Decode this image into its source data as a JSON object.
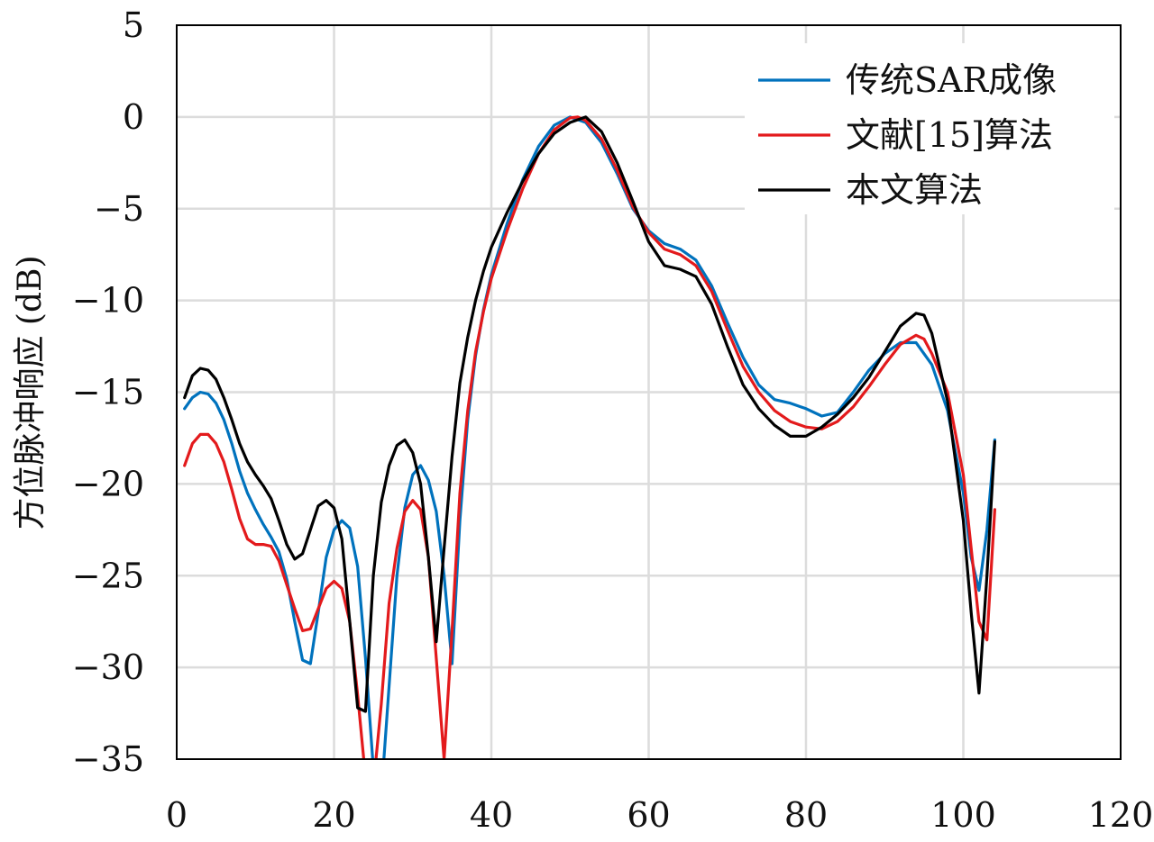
{
  "chart_data": {
    "type": "line",
    "title": "",
    "xlabel": "",
    "ylabel": "方位脉冲响应 (dB)",
    "xlim": [
      0,
      120
    ],
    "ylim": [
      -35,
      5
    ],
    "xticks": [
      0,
      20,
      40,
      60,
      80,
      100,
      120
    ],
    "yticks": [
      5,
      0,
      -5,
      -10,
      -15,
      -20,
      -25,
      -30,
      -35
    ],
    "xtick_labels": [
      "0",
      "20",
      "40",
      "60",
      "80",
      "100",
      "120"
    ],
    "ytick_labels": [
      "5",
      "0",
      "−5",
      "−10",
      "−15",
      "−20",
      "−25",
      "−30",
      "−35"
    ],
    "grid": true,
    "legend_position": "top-right",
    "series": [
      {
        "name": "传统SAR成像",
        "color": "#0072BD",
        "points": [
          [
            1,
            -15.9
          ],
          [
            2,
            -15.3
          ],
          [
            3,
            -15.0
          ],
          [
            4,
            -15.1
          ],
          [
            5,
            -15.6
          ],
          [
            6,
            -16.5
          ],
          [
            7,
            -17.8
          ],
          [
            8,
            -19.3
          ],
          [
            9,
            -20.5
          ],
          [
            10,
            -21.4
          ],
          [
            11,
            -22.2
          ],
          [
            12,
            -22.9
          ],
          [
            13,
            -23.7
          ],
          [
            14,
            -25.2
          ],
          [
            15,
            -27.5
          ],
          [
            16,
            -29.6
          ],
          [
            17,
            -29.8
          ],
          [
            18,
            -27.0
          ],
          [
            19,
            -24.0
          ],
          [
            20,
            -22.5
          ],
          [
            21,
            -22.0
          ],
          [
            22,
            -22.4
          ],
          [
            23,
            -24.5
          ],
          [
            24,
            -29.5
          ],
          [
            25,
            -35.5
          ],
          [
            26,
            -37.0
          ],
          [
            27,
            -31.0
          ],
          [
            28,
            -25.0
          ],
          [
            29,
            -21.3
          ],
          [
            30,
            -19.5
          ],
          [
            31,
            -19.0
          ],
          [
            32,
            -19.8
          ],
          [
            33,
            -21.5
          ],
          [
            34,
            -25.0
          ],
          [
            35,
            -29.8
          ],
          [
            36,
            -22.0
          ],
          [
            37,
            -16.5
          ],
          [
            38,
            -13.0
          ],
          [
            39,
            -10.5
          ],
          [
            40,
            -8.6
          ],
          [
            42,
            -5.8
          ],
          [
            44,
            -3.4
          ],
          [
            46,
            -1.6
          ],
          [
            48,
            -0.45
          ],
          [
            50,
            0.0
          ],
          [
            52,
            -0.3
          ],
          [
            54,
            -1.4
          ],
          [
            56,
            -3.1
          ],
          [
            58,
            -5.0
          ],
          [
            60,
            -6.2
          ],
          [
            62,
            -6.9
          ],
          [
            64,
            -7.2
          ],
          [
            66,
            -7.8
          ],
          [
            68,
            -9.2
          ],
          [
            70,
            -11.2
          ],
          [
            72,
            -13.1
          ],
          [
            74,
            -14.6
          ],
          [
            76,
            -15.4
          ],
          [
            78,
            -15.6
          ],
          [
            80,
            -15.9
          ],
          [
            82,
            -16.3
          ],
          [
            84,
            -16.1
          ],
          [
            86,
            -15.0
          ],
          [
            88,
            -13.8
          ],
          [
            90,
            -12.9
          ],
          [
            92,
            -12.3
          ],
          [
            94,
            -12.3
          ],
          [
            96,
            -13.5
          ],
          [
            98,
            -16.0
          ],
          [
            100,
            -20.5
          ],
          [
            101,
            -24.0
          ],
          [
            102,
            -25.8
          ],
          [
            103,
            -22.5
          ],
          [
            104,
            -17.6
          ]
        ]
      },
      {
        "name": "文献[15]算法",
        "color": "#E31A1C",
        "points": [
          [
            1,
            -19.0
          ],
          [
            2,
            -17.8
          ],
          [
            3,
            -17.3
          ],
          [
            4,
            -17.3
          ],
          [
            5,
            -17.8
          ],
          [
            6,
            -18.8
          ],
          [
            7,
            -20.3
          ],
          [
            8,
            -21.9
          ],
          [
            9,
            -23.0
          ],
          [
            10,
            -23.3
          ],
          [
            11,
            -23.3
          ],
          [
            12,
            -23.4
          ],
          [
            13,
            -24.2
          ],
          [
            14,
            -25.5
          ],
          [
            15,
            -26.8
          ],
          [
            16,
            -28.0
          ],
          [
            17,
            -27.9
          ],
          [
            18,
            -26.8
          ],
          [
            19,
            -25.7
          ],
          [
            20,
            -25.3
          ],
          [
            21,
            -25.7
          ],
          [
            22,
            -27.5
          ],
          [
            23,
            -31.5
          ],
          [
            24,
            -36.0
          ],
          [
            25,
            -36.5
          ],
          [
            26,
            -32.0
          ],
          [
            27,
            -26.5
          ],
          [
            28,
            -23.5
          ],
          [
            29,
            -21.5
          ],
          [
            30,
            -20.9
          ],
          [
            31,
            -21.4
          ],
          [
            32,
            -24.0
          ],
          [
            33,
            -29.5
          ],
          [
            34,
            -35.0
          ],
          [
            35,
            -28.0
          ],
          [
            36,
            -20.5
          ],
          [
            37,
            -16.0
          ],
          [
            38,
            -12.8
          ],
          [
            39,
            -10.6
          ],
          [
            40,
            -8.8
          ],
          [
            42,
            -6.2
          ],
          [
            44,
            -3.9
          ],
          [
            46,
            -2.0
          ],
          [
            48,
            -0.7
          ],
          [
            50,
            -0.05
          ],
          [
            51,
            0.0
          ],
          [
            52,
            -0.2
          ],
          [
            54,
            -1.2
          ],
          [
            56,
            -2.9
          ],
          [
            58,
            -4.9
          ],
          [
            60,
            -6.3
          ],
          [
            62,
            -7.2
          ],
          [
            64,
            -7.5
          ],
          [
            66,
            -8.1
          ],
          [
            68,
            -9.5
          ],
          [
            70,
            -11.6
          ],
          [
            72,
            -13.6
          ],
          [
            74,
            -15.0
          ],
          [
            76,
            -16.0
          ],
          [
            78,
            -16.6
          ],
          [
            80,
            -16.9
          ],
          [
            82,
            -17.0
          ],
          [
            84,
            -16.6
          ],
          [
            86,
            -15.8
          ],
          [
            88,
            -14.7
          ],
          [
            90,
            -13.5
          ],
          [
            92,
            -12.4
          ],
          [
            94,
            -11.9
          ],
          [
            95,
            -12.1
          ],
          [
            96,
            -12.9
          ],
          [
            98,
            -15.0
          ],
          [
            100,
            -19.5
          ],
          [
            101,
            -23.5
          ],
          [
            102,
            -27.5
          ],
          [
            103,
            -28.5
          ],
          [
            104,
            -21.4
          ]
        ]
      },
      {
        "name": "本文算法",
        "color": "#000000",
        "points": [
          [
            1,
            -15.3
          ],
          [
            2,
            -14.1
          ],
          [
            3,
            -13.7
          ],
          [
            4,
            -13.8
          ],
          [
            5,
            -14.3
          ],
          [
            6,
            -15.3
          ],
          [
            7,
            -16.5
          ],
          [
            8,
            -17.8
          ],
          [
            9,
            -18.8
          ],
          [
            10,
            -19.5
          ],
          [
            11,
            -20.1
          ],
          [
            12,
            -20.8
          ],
          [
            13,
            -22.0
          ],
          [
            14,
            -23.3
          ],
          [
            15,
            -24.1
          ],
          [
            16,
            -23.8
          ],
          [
            17,
            -22.5
          ],
          [
            18,
            -21.2
          ],
          [
            19,
            -20.9
          ],
          [
            20,
            -21.3
          ],
          [
            21,
            -23.0
          ],
          [
            22,
            -27.5
          ],
          [
            23,
            -32.2
          ],
          [
            24,
            -32.4
          ],
          [
            25,
            -25.0
          ],
          [
            26,
            -21.0
          ],
          [
            27,
            -19.0
          ],
          [
            28,
            -17.9
          ],
          [
            29,
            -17.6
          ],
          [
            30,
            -18.3
          ],
          [
            31,
            -20.0
          ],
          [
            32,
            -24.0
          ],
          [
            33,
            -28.6
          ],
          [
            34,
            -23.5
          ],
          [
            35,
            -18.5
          ],
          [
            36,
            -14.5
          ],
          [
            37,
            -12.0
          ],
          [
            38,
            -10.0
          ],
          [
            39,
            -8.4
          ],
          [
            40,
            -7.1
          ],
          [
            42,
            -5.2
          ],
          [
            44,
            -3.5
          ],
          [
            46,
            -2.0
          ],
          [
            48,
            -0.9
          ],
          [
            50,
            -0.3
          ],
          [
            52,
            0.0
          ],
          [
            54,
            -0.8
          ],
          [
            56,
            -2.5
          ],
          [
            58,
            -4.6
          ],
          [
            60,
            -6.8
          ],
          [
            62,
            -8.1
          ],
          [
            64,
            -8.3
          ],
          [
            66,
            -8.7
          ],
          [
            68,
            -10.2
          ],
          [
            70,
            -12.5
          ],
          [
            72,
            -14.6
          ],
          [
            74,
            -15.9
          ],
          [
            76,
            -16.8
          ],
          [
            78,
            -17.4
          ],
          [
            80,
            -17.4
          ],
          [
            82,
            -16.9
          ],
          [
            84,
            -16.2
          ],
          [
            86,
            -15.3
          ],
          [
            88,
            -14.2
          ],
          [
            90,
            -12.8
          ],
          [
            92,
            -11.4
          ],
          [
            94,
            -10.7
          ],
          [
            95,
            -10.8
          ],
          [
            96,
            -11.8
          ],
          [
            98,
            -15.5
          ],
          [
            100,
            -22.0
          ],
          [
            101,
            -27.0
          ],
          [
            102,
            -31.4
          ],
          [
            103,
            -25.0
          ],
          [
            104,
            -17.7
          ]
        ]
      }
    ]
  }
}
